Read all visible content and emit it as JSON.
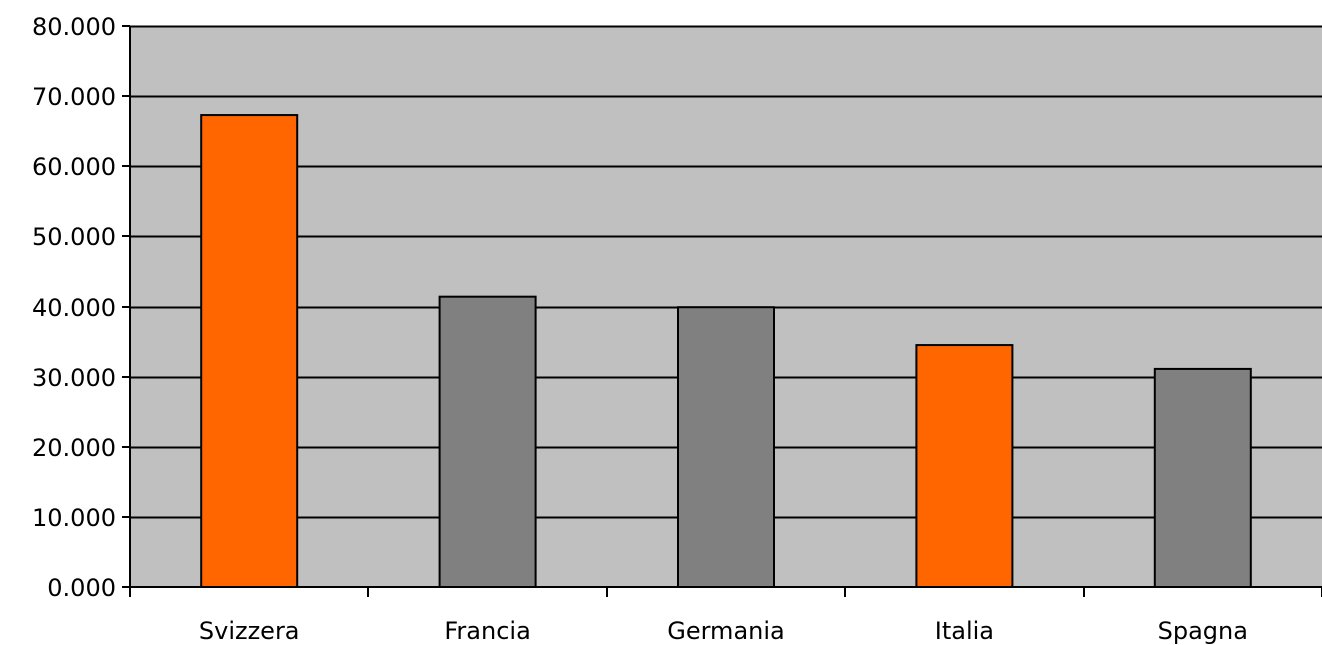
{
  "chart_data": {
    "type": "bar",
    "title": "",
    "xlabel": "",
    "ylabel": "",
    "categories": [
      "Svizzera",
      "Francia",
      "Germania",
      "Italia",
      "Spagna"
    ],
    "values": [
      67300,
      41400,
      39900,
      34500,
      31100
    ],
    "bar_colors": [
      "#ff6600",
      "#808080",
      "#808080",
      "#ff6600",
      "#808080"
    ],
    "ylim": [
      0,
      80000
    ],
    "yticks": [
      0,
      10000,
      20000,
      30000,
      40000,
      50000,
      60000,
      70000,
      80000
    ],
    "ytick_labels": [
      "0.000",
      "10.000",
      "20.000",
      "30.000",
      "40.000",
      "50.000",
      "60.000",
      "70.000",
      "80.000"
    ],
    "grid": true,
    "plot_background": "#c0c0c0",
    "gridline_color": "#000000"
  }
}
